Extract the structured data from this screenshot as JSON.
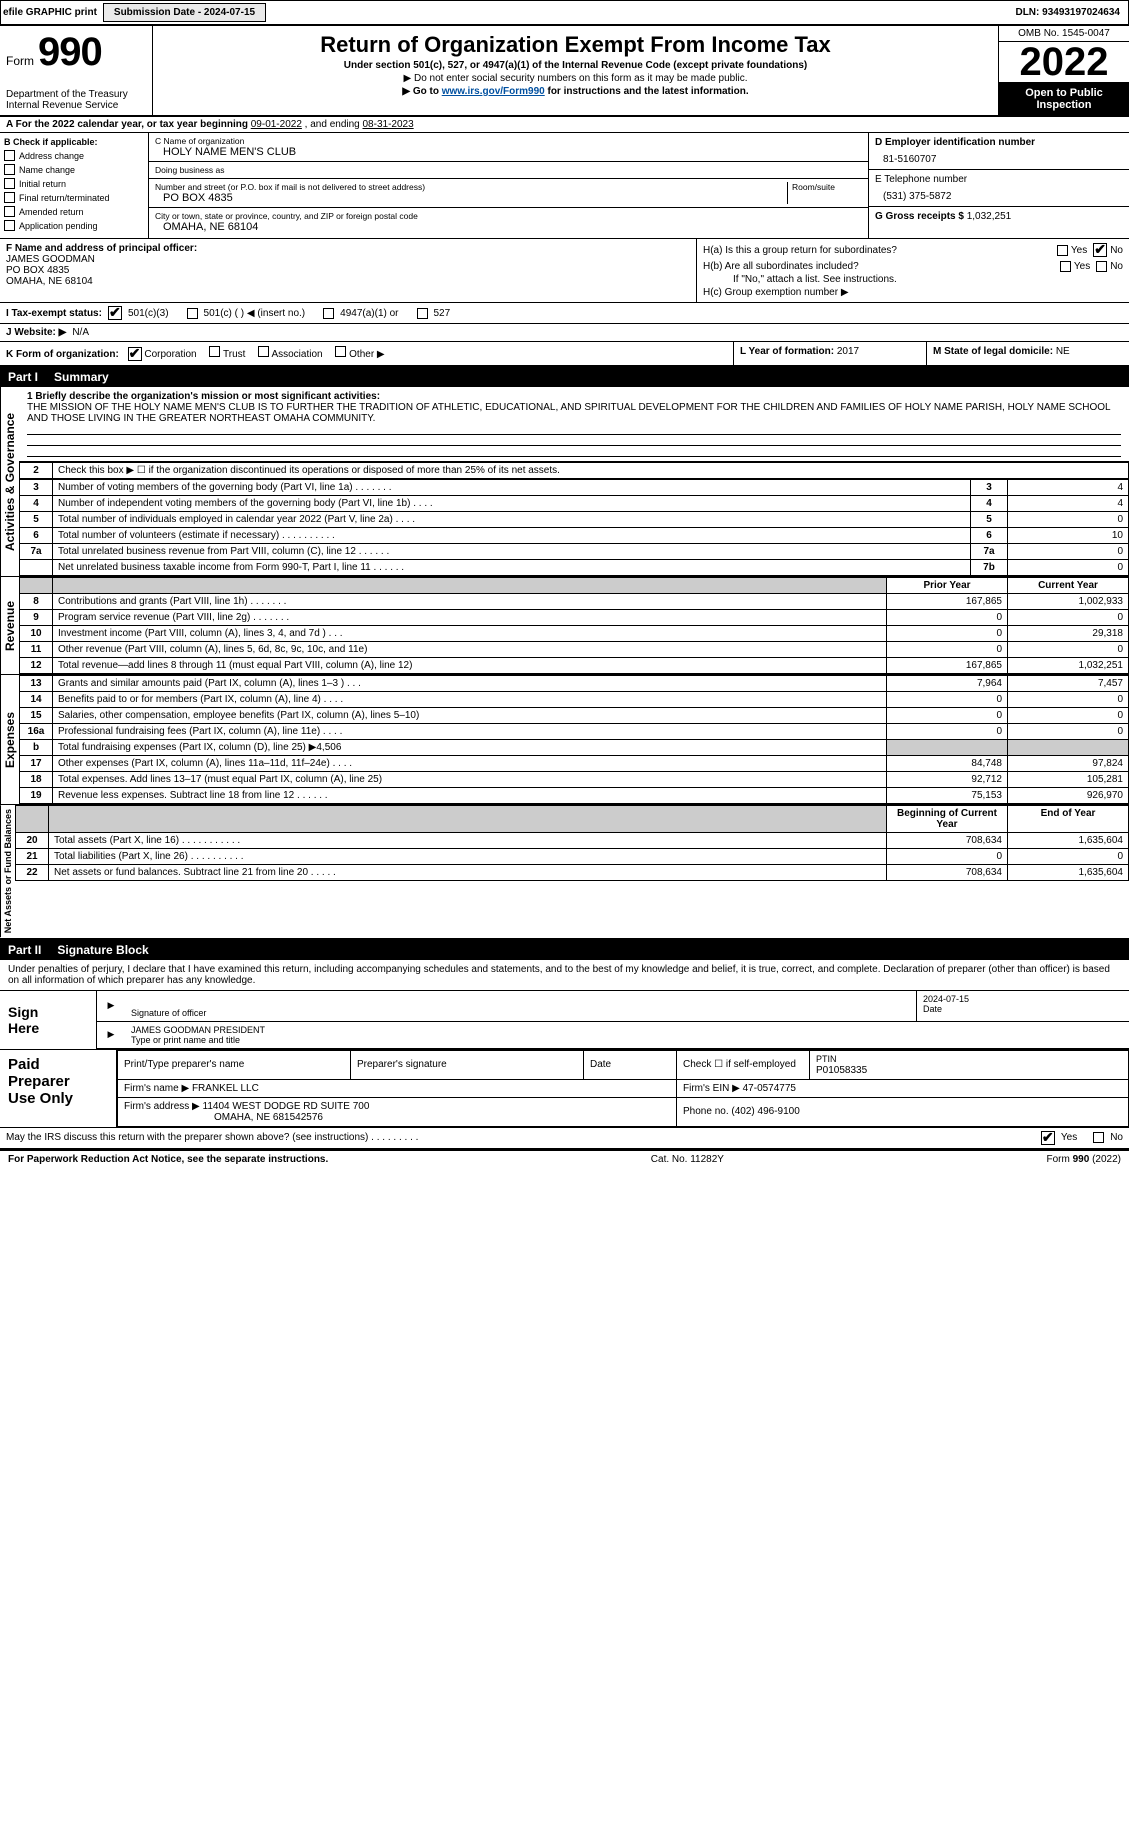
{
  "topbar": {
    "efile": "efile GRAPHIC print",
    "sub_label": "Submission Date - 2024-07-15",
    "dln": "DLN: 93493197024634"
  },
  "header": {
    "form_word": "Form",
    "form_num": "990",
    "title": "Return of Organization Exempt From Income Tax",
    "subtitle": "Under section 501(c), 527, or 4947(a)(1) of the Internal Revenue Code (except private foundations)",
    "line1": "▶ Do not enter social security numbers on this form as it may be made public.",
    "line2_pre": "▶ Go to ",
    "line2_link": "www.irs.gov/Form990",
    "line2_post": " for instructions and the latest information.",
    "dept": "Department of the Treasury",
    "irs": "Internal Revenue Service",
    "omb": "OMB No. 1545-0047",
    "year": "2022",
    "open": "Open to Public Inspection"
  },
  "rowA": {
    "text_pre": "A For the 2022 calendar year, or tax year beginning ",
    "begin": "09-01-2022",
    "mid": "   , and ending ",
    "end": "08-31-2023"
  },
  "colB": {
    "header": "B Check if applicable:",
    "items": [
      "Address change",
      "Name change",
      "Initial return",
      "Final return/terminated",
      "Amended return",
      "Application pending"
    ]
  },
  "colC": {
    "name_lbl": "C Name of organization",
    "name": "HOLY NAME MEN'S CLUB",
    "dba_lbl": "Doing business as",
    "dba": "",
    "addr_lbl": "Number and street (or P.O. box if mail is not delivered to street address)",
    "room_lbl": "Room/suite",
    "addr": "PO BOX 4835",
    "city_lbl": "City or town, state or province, country, and ZIP or foreign postal code",
    "city": "OMAHA, NE  68104"
  },
  "colD": {
    "ein_lbl": "D Employer identification number",
    "ein": "81-5160707",
    "phone_lbl": "E Telephone number",
    "phone": "(531) 375-5872",
    "gross_lbl": "G Gross receipts $",
    "gross": "1,032,251"
  },
  "fg": {
    "f_lbl": "F  Name and address of principal officer:",
    "f_name": "JAMES GOODMAN",
    "f_addr1": "PO BOX 4835",
    "f_addr2": "OMAHA, NE  68104",
    "ha": "H(a)  Is this a group return for subordinates?",
    "hb": "H(b)  Are all subordinates included?",
    "hb_note": "If \"No,\" attach a list. See instructions.",
    "hc": "H(c)  Group exemption number ▶"
  },
  "status": {
    "label": "I   Tax-exempt status:",
    "opts": [
      "501(c)(3)",
      "501(c) (  ) ◀ (insert no.)",
      "4947(a)(1) or",
      "527"
    ]
  },
  "website": {
    "label": "J  Website: ▶",
    "value": "N/A"
  },
  "kl": {
    "k_label": "K Form of organization:",
    "k_opts": [
      "Corporation",
      "Trust",
      "Association",
      "Other ▶"
    ],
    "l_label": "L Year of formation:",
    "l_val": "2017",
    "m_label": "M State of legal domicile:",
    "m_val": "NE"
  },
  "part1_hdr": {
    "pt": "Part I",
    "title": "Summary"
  },
  "mission": {
    "linelabel": "1  Briefly describe the organization's mission or most significant activities:",
    "text": "THE MISSION OF THE HOLY NAME MEN'S CLUB IS TO FURTHER THE TRADITION OF ATHLETIC, EDUCATIONAL, AND SPIRITUAL DEVELOPMENT FOR THE CHILDREN AND FAMILIES OF HOLY NAME PARISH, HOLY NAME SCHOOL AND THOSE LIVING IN THE GREATER NORTHEAST OMAHA COMMUNITY."
  },
  "line2": "Check this box ▶ ☐  if the organization discontinued its operations or disposed of more than 25% of its net assets.",
  "gov_rows": [
    {
      "n": "3",
      "t": "Number of voting members of the governing body (Part VI, line 1a)   .    .    .    .    .    .    .",
      "box": "3",
      "v": "4"
    },
    {
      "n": "4",
      "t": "Number of independent voting members of the governing body (Part VI, line 1b)  .    .    .    .",
      "box": "4",
      "v": "4"
    },
    {
      "n": "5",
      "t": "Total number of individuals employed in calendar year 2022 (Part V, line 2a)  .    .    .    .",
      "box": "5",
      "v": "0"
    },
    {
      "n": "6",
      "t": "Total number of volunteers (estimate if necessary)   .    .    .    .    .    .    .    .    .    .",
      "box": "6",
      "v": "10"
    },
    {
      "n": "7a",
      "t": "Total unrelated business revenue from Part VIII, column (C), line 12   .    .    .    .    .    .",
      "box": "7a",
      "v": "0"
    },
    {
      "n": "",
      "t": "Net unrelated business taxable income from Form 990-T, Part I, line 11   .    .    .    .    .    .",
      "box": "7b",
      "v": "0"
    }
  ],
  "col_hdrs": {
    "py": "Prior Year",
    "cy": "Current Year",
    "boy": "Beginning of Current Year",
    "eoy": "End of Year"
  },
  "rev_rows": [
    {
      "n": "8",
      "t": "Contributions and grants (Part VIII, line 1h)   .    .    .    .    .    .    .",
      "py": "167,865",
      "cy": "1,002,933"
    },
    {
      "n": "9",
      "t": "Program service revenue (Part VIII, line 2g)   .    .    .    .    .    .    .",
      "py": "0",
      "cy": "0"
    },
    {
      "n": "10",
      "t": "Investment income (Part VIII, column (A), lines 3, 4, and 7d )   .    .    .",
      "py": "0",
      "cy": "29,318"
    },
    {
      "n": "11",
      "t": "Other revenue (Part VIII, column (A), lines 5, 6d, 8c, 9c, 10c, and 11e)",
      "py": "0",
      "cy": "0"
    },
    {
      "n": "12",
      "t": "Total revenue—add lines 8 through 11 (must equal Part VIII, column (A), line 12)",
      "py": "167,865",
      "cy": "1,032,251"
    }
  ],
  "exp_rows": [
    {
      "n": "13",
      "t": "Grants and similar amounts paid (Part IX, column (A), lines 1–3 )   .    .    .",
      "py": "7,964",
      "cy": "7,457"
    },
    {
      "n": "14",
      "t": "Benefits paid to or for members (Part IX, column (A), line 4)   .    .    .    .",
      "py": "0",
      "cy": "0"
    },
    {
      "n": "15",
      "t": "Salaries, other compensation, employee benefits (Part IX, column (A), lines 5–10)",
      "py": "0",
      "cy": "0"
    },
    {
      "n": "16a",
      "t": "Professional fundraising fees (Part IX, column (A), line 11e)   .    .    .    .",
      "py": "0",
      "cy": "0"
    },
    {
      "n": "b",
      "t": "Total fundraising expenses (Part IX, column (D), line 25) ▶4,506",
      "py": "",
      "cy": "",
      "shadepy": true,
      "shadecy": true
    },
    {
      "n": "17",
      "t": "Other expenses (Part IX, column (A), lines 11a–11d, 11f–24e)   .    .    .    .",
      "py": "84,748",
      "cy": "97,824"
    },
    {
      "n": "18",
      "t": "Total expenses. Add lines 13–17 (must equal Part IX, column (A), line 25)",
      "py": "92,712",
      "cy": "105,281"
    },
    {
      "n": "19",
      "t": "Revenue less expenses. Subtract line 18 from line 12   .    .    .    .    .    .",
      "py": "75,153",
      "cy": "926,970"
    }
  ],
  "na_rows": [
    {
      "n": "20",
      "t": "Total assets (Part X, line 16)   .    .    .    .    .    .    .    .    .    .    .",
      "py": "708,634",
      "cy": "1,635,604"
    },
    {
      "n": "21",
      "t": "Total liabilities (Part X, line 26)   .    .    .    .    .    .    .    .    .    .",
      "py": "0",
      "cy": "0"
    },
    {
      "n": "22",
      "t": "Net assets or fund balances. Subtract line 21 from line 20   .    .    .    .    .",
      "py": "708,634",
      "cy": "1,635,604"
    }
  ],
  "sidelabels": {
    "a": "Activities & Governance",
    "r": "Revenue",
    "e": "Expenses",
    "n": "Net Assets or Fund Balances"
  },
  "part2_hdr": {
    "pt": "Part II",
    "title": "Signature Block"
  },
  "sig": {
    "decl": "Under penalties of perjury, I declare that I have examined this return, including accompanying schedules and statements, and to the best of my knowledge and belief, it is true, correct, and complete. Declaration of preparer (other than officer) is based on all information of which preparer has any knowledge.",
    "sign": "Sign Here",
    "sig_lbl": "Signature of officer",
    "date_lbl": "Date",
    "date": "2024-07-15",
    "name": "JAMES GOODMAN  PRESIDENT",
    "type_lbl": "Type or print name and title"
  },
  "paid": {
    "title": "Paid Preparer Use Only",
    "h1": "Print/Type preparer's name",
    "h2": "Preparer's signature",
    "h3": "Date",
    "h4": "Check ☐ if self-employed",
    "h5_lbl": "PTIN",
    "h5": "P01058335",
    "firm_lbl": "Firm's name   ▶",
    "firm": "FRANKEL LLC",
    "ein_lbl": "Firm's EIN ▶",
    "ein": "47-0574775",
    "addr_lbl": "Firm's address ▶",
    "addr1": "11404 WEST DODGE RD SUITE 700",
    "addr2": "OMAHA, NE  681542576",
    "phone_lbl": "Phone no.",
    "phone": "(402) 496-9100"
  },
  "discuss": "May the IRS discuss this return with the preparer shown above? (see instructions)   .    .    .    .    .    .    .    .    .",
  "footer": {
    "left": "For Paperwork Reduction Act Notice, see the separate instructions.",
    "mid": "Cat. No. 11282Y",
    "right": "Form 990 (2022)"
  },
  "yesno": {
    "yes": "Yes",
    "no": "No"
  }
}
